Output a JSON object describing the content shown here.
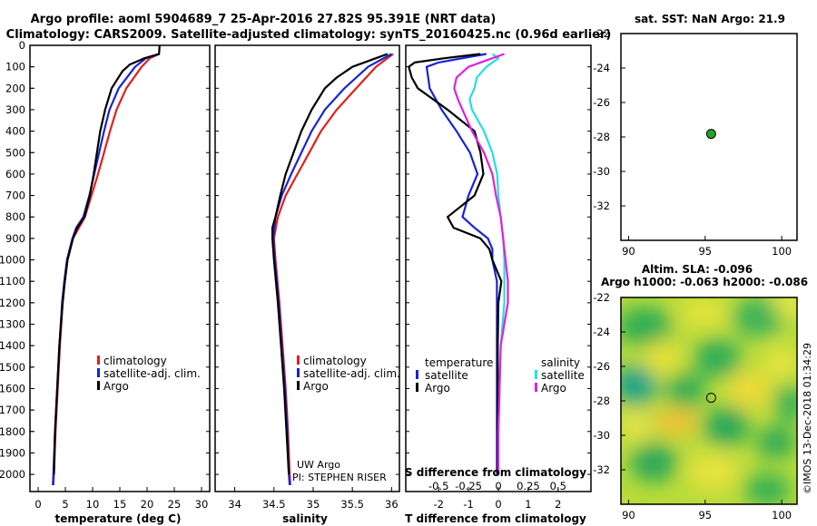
{
  "header": {
    "title_line1": "Argo profile: aoml 5904689_7 25-Apr-2016 27.82S 95.391E (NRT data)",
    "title_line2": "Climatology: CARS2009. Satellite-adjusted climatology: synTS_20160425.nc (0.96d earlier)"
  },
  "colors": {
    "climatology": "#e0201a",
    "satellite": "#1624d8",
    "argo": "#000000",
    "satellite_salinity": "#23e0e0",
    "argo_salinity": "#e020e0"
  },
  "chart_data": [
    {
      "type": "line",
      "name": "temperature",
      "xlabel": "temperature (deg C)",
      "xlim": [
        -1.5,
        31.5
      ],
      "xticks": [
        0,
        5,
        10,
        15,
        20,
        25,
        30
      ],
      "ylim": [
        2080,
        0
      ],
      "yticks": [
        0,
        100,
        200,
        300,
        400,
        500,
        600,
        700,
        800,
        900,
        1000,
        1100,
        1200,
        1300,
        1400,
        1500,
        1600,
        1700,
        1800,
        1900,
        2000
      ],
      "legend": [
        "climatology",
        "satellite-adj. clim.",
        "Argo"
      ],
      "series": [
        {
          "name": "climatology",
          "color_key": "climatology",
          "depth": [
            40,
            60,
            100,
            200,
            300,
            400,
            500,
            600,
            700,
            800,
            900,
            1000,
            1100,
            1200,
            1400,
            1600,
            1800,
            2000,
            2050
          ],
          "values": [
            22.2,
            20.5,
            19.0,
            16.2,
            14.4,
            13.2,
            12.1,
            11.0,
            9.8,
            8.6,
            6.4,
            5.4,
            4.9,
            4.5,
            4.0,
            3.6,
            3.2,
            2.9,
            2.8
          ]
        },
        {
          "name": "satellite-adj. clim.",
          "color_key": "satellite",
          "depth": [
            40,
            60,
            100,
            200,
            300,
            400,
            500,
            600,
            700,
            800,
            850,
            900,
            1000,
            1100,
            1200,
            1400,
            1600,
            1800,
            2000,
            2050
          ],
          "values": [
            22.3,
            19.8,
            17.8,
            14.8,
            13.1,
            12.1,
            11.2,
            10.3,
            9.4,
            8.3,
            7.0,
            6.3,
            5.3,
            4.8,
            4.4,
            3.9,
            3.5,
            3.1,
            2.8,
            2.7
          ]
        },
        {
          "name": "Argo",
          "color_key": "argo",
          "depth": [
            0,
            40,
            60,
            90,
            120,
            200,
            300,
            400,
            500,
            600,
            700,
            800,
            850,
            900,
            1000,
            1100,
            1200,
            1400,
            1600,
            1800,
            2000
          ],
          "values": [
            22.3,
            22.2,
            19.5,
            16.8,
            15.5,
            13.5,
            12.3,
            11.4,
            10.8,
            10.2,
            9.5,
            8.5,
            7.2,
            6.4,
            5.4,
            4.9,
            4.5,
            3.9,
            3.5,
            3.1,
            2.9
          ]
        }
      ]
    },
    {
      "type": "line",
      "name": "salinity",
      "xlabel": "salinity",
      "xlim": [
        33.75,
        36.1
      ],
      "xticks": [
        34,
        34.5,
        35,
        35.5,
        36
      ],
      "ylim": [
        2080,
        0
      ],
      "legend": [
        "climatology",
        "satellite-adj. clim.",
        "Argo"
      ],
      "annotation": [
        "UW Argo",
        "PI: STEPHEN RISER"
      ],
      "series": [
        {
          "name": "climatology",
          "color_key": "climatology",
          "depth": [
            40,
            100,
            200,
            300,
            400,
            500,
            600,
            700,
            800,
            900,
            1000,
            1200,
            1400,
            1600,
            1800,
            2000,
            2050
          ],
          "values": [
            36.02,
            35.8,
            35.55,
            35.3,
            35.1,
            34.95,
            34.8,
            34.65,
            34.55,
            34.5,
            34.52,
            34.57,
            34.61,
            34.65,
            34.68,
            34.7,
            34.71
          ]
        },
        {
          "name": "satellite-adj. clim.",
          "color_key": "satellite",
          "depth": [
            40,
            100,
            200,
            300,
            400,
            500,
            600,
            700,
            800,
            900,
            1000,
            1200,
            1400,
            1600,
            1800,
            2000,
            2050
          ],
          "values": [
            36.0,
            35.7,
            35.4,
            35.15,
            34.98,
            34.85,
            34.72,
            34.6,
            34.52,
            34.49,
            34.51,
            34.56,
            34.6,
            34.64,
            34.67,
            34.69,
            34.7
          ]
        },
        {
          "name": "Argo",
          "color_key": "argo",
          "depth": [
            40,
            60,
            100,
            150,
            200,
            300,
            400,
            500,
            600,
            700,
            800,
            850,
            900,
            1000,
            1200,
            1400,
            1600,
            1800,
            2000
          ],
          "values": [
            35.95,
            35.8,
            35.5,
            35.3,
            35.15,
            34.98,
            34.85,
            34.75,
            34.65,
            34.58,
            34.52,
            34.48,
            34.48,
            34.5,
            34.55,
            34.59,
            34.63,
            34.66,
            34.69
          ]
        }
      ]
    },
    {
      "type": "line",
      "name": "difference_from_climatology",
      "xlabel": "T difference from climatology",
      "xlabel_top": "S difference from climatology",
      "xlim": [
        -3.1,
        3.1
      ],
      "xticks": [
        -2,
        -1,
        0,
        1,
        2
      ],
      "xticks_top": [
        -0.5,
        -0.25,
        0,
        0.25,
        0.5
      ],
      "xticks_top_labels": [
        "-0.5",
        "-0.25",
        "0",
        "0.25",
        "0.5"
      ],
      "ylim": [
        2080,
        0
      ],
      "legend_left_title": "temperature",
      "legend_right_title": "salinity",
      "legend_left": [
        "satellite",
        "Argo"
      ],
      "legend_right": [
        "satellite",
        "Argo"
      ],
      "series": [
        {
          "name": "temperature satellite",
          "color_key": "satellite",
          "depth": [
            40,
            60,
            80,
            100,
            150,
            200,
            300,
            400,
            500,
            600,
            700,
            800,
            850,
            900,
            950,
            1000,
            1100,
            1200,
            1400,
            1600,
            1800,
            2000
          ],
          "values": [
            -0.4,
            -1.2,
            -2.0,
            -2.4,
            -2.35,
            -2.3,
            -1.9,
            -1.4,
            -0.95,
            -0.7,
            -1.0,
            -1.2,
            -0.8,
            -0.35,
            -0.2,
            -0.2,
            -0.05,
            -0.05,
            -0.05,
            -0.05,
            -0.05,
            -0.05
          ]
        },
        {
          "name": "temperature Argo",
          "color_key": "argo",
          "depth": [
            40,
            60,
            80,
            100,
            150,
            200,
            300,
            400,
            500,
            600,
            700,
            800,
            850,
            900,
            950,
            1000,
            1100,
            1200,
            1400,
            1600,
            1800,
            2000
          ],
          "values": [
            -0.6,
            -1.8,
            -2.8,
            -3.0,
            -2.9,
            -2.7,
            -1.7,
            -0.8,
            -0.6,
            -0.5,
            -0.8,
            -1.7,
            -1.5,
            -0.6,
            -0.3,
            -0.2,
            0.1,
            0.0,
            -0.02,
            -0.02,
            -0.02,
            -0.02
          ]
        },
        {
          "name": "salinity satellite",
          "color_key": "satellite_salinity",
          "depth": [
            40,
            60,
            100,
            150,
            200,
            250,
            300,
            400,
            500,
            600,
            700,
            800,
            900,
            1000,
            1200,
            1400,
            1600,
            1800,
            2000
          ],
          "values": [
            -0.05,
            0.0,
            -0.1,
            -0.18,
            -0.2,
            -0.24,
            -0.22,
            -0.12,
            -0.05,
            -0.01,
            0.0,
            0.02,
            0.04,
            0.05,
            0.05,
            0.02,
            0.01,
            0.0,
            0.0
          ]
        },
        {
          "name": "salinity Argo",
          "color_key": "argo_salinity",
          "depth": [
            40,
            60,
            100,
            150,
            200,
            250,
            300,
            400,
            500,
            600,
            700,
            800,
            900,
            1000,
            1100,
            1200,
            1400,
            1600,
            1800,
            2000
          ],
          "values": [
            0.05,
            -0.05,
            -0.25,
            -0.35,
            -0.37,
            -0.34,
            -0.3,
            -0.22,
            -0.12,
            -0.05,
            -0.02,
            0.02,
            0.04,
            0.06,
            0.08,
            0.08,
            0.02,
            0.01,
            0.0,
            0.0
          ]
        }
      ]
    },
    {
      "type": "scatter",
      "name": "sst_location_map",
      "title": "sat. SST: NaN Argo: 21.9",
      "xlim": [
        89.5,
        101
      ],
      "ylim": [
        -34,
        -22
      ],
      "xticks": [
        90,
        95,
        100
      ],
      "yticks": [
        -22,
        -24,
        -26,
        -28,
        -30,
        -32
      ],
      "points": [
        {
          "x": 95.391,
          "y": -27.82,
          "fill": "#22a522"
        }
      ]
    },
    {
      "type": "heatmap",
      "name": "sla_map",
      "title_line1": "Altim. SLA: -0.096",
      "title_line2": "Argo h1000: -0.063 h2000: -0.086",
      "xlim": [
        89.5,
        101
      ],
      "ylim": [
        -34,
        -22
      ],
      "xticks": [
        90,
        95,
        100
      ],
      "yticks": [
        -22,
        -24,
        -26,
        -28,
        -30,
        -32
      ],
      "points": [
        {
          "x": 95.391,
          "y": -27.82
        }
      ]
    }
  ],
  "footer": {
    "credit": "©IMOS 13-Dec-2018 01:34:29"
  }
}
